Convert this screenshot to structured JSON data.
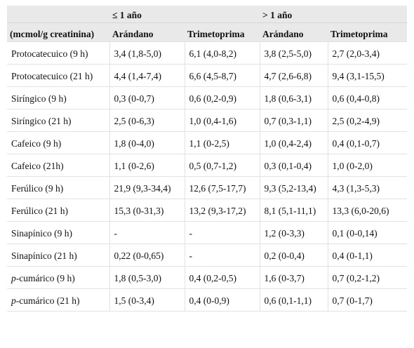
{
  "header": {
    "group1": "≤ 1 año",
    "group2": "> 1 año",
    "unit_label": "(mcmol/g creatinina)",
    "col_cranberry_1": "Arándano",
    "col_tmp_1": "Trimetoprima",
    "col_cranberry_2": "Arándano",
    "col_tmp_2": "Trimetoprima"
  },
  "rows": [
    {
      "label_prefix": "",
      "label": "Protocatecuico (9 h)",
      "c1": "3,4 (1,8-5,0)",
      "c2": "6,1 (4,0-8,2)",
      "c3": "3,8 (2,5-5,0)",
      "c4": "2,7 (2,0-3,4)"
    },
    {
      "label_prefix": "",
      "label": "Protocatecuico (21 h)",
      "c1": "4,4 (1,4-7,4)",
      "c2": "6,6 (4,5-8,7)",
      "c3": "4,7 (2,6-6,8)",
      "c4": "9,4 (3,1-15,5)"
    },
    {
      "label_prefix": "",
      "label": "Siríngico (9 h)",
      "c1": "0,3 (0-0,7)",
      "c2": "0,6 (0,2-0,9)",
      "c3": "1,8 (0,6-3,1)",
      "c4": "0,6 (0,4-0,8)"
    },
    {
      "label_prefix": "",
      "label": "Siríngico (21 h)",
      "c1": "2,5 (0-6,3)",
      "c2": "1,0 (0,4-1,6)",
      "c3": "0,7 (0,3-1,1)",
      "c4": "2,5 (0,2-4,9)"
    },
    {
      "label_prefix": "",
      "label": "Cafeico (9 h)",
      "c1": "1,8 (0-4,0)",
      "c2": "1,1 (0-2,5)",
      "c3": "1,0 (0,4-2,4)",
      "c4": "0,4 (0,1-0,7)"
    },
    {
      "label_prefix": "",
      "label": "Cafeico (21h)",
      "c1": "1,1 (0-2,6)",
      "c2": "0,5 (0,7-1,2)",
      "c3": "0,3 (0,1-0,4)",
      "c4": "1,0 (0-2,0)"
    },
    {
      "label_prefix": "",
      "label": "Ferúlico (9 h)",
      "c1": "21,9 (9,3-34,4)",
      "c2": "12,6 (7,5-17,7)",
      "c3": "9,3 (5,2-13,4)",
      "c4": "4,3 (1,3-5,3)"
    },
    {
      "label_prefix": "",
      "label": "Ferúlico (21 h)",
      "c1": "15,3 (0-31,3)",
      "c2": "13,2 (9,3-17,2)",
      "c3": "8,1 (5,1-11,1)",
      "c4": "13,3 (6,0-20,6)"
    },
    {
      "label_prefix": "",
      "label": "Sinapínico (9 h)",
      "c1": "-",
      "c2": "-",
      "c3": "1,2 (0-3,3)",
      "c4": "0,1 (0-0,14)"
    },
    {
      "label_prefix": "",
      "label": "Sinapínico (21 h)",
      "c1": "0,22 (0-0,65)",
      "c2": "-",
      "c3": "0,2 (0-0,4)",
      "c4": "0,4 (0-1,1)"
    },
    {
      "label_prefix": "p",
      "label": "-cumárico (9 h)",
      "c1": "1,8 (0,5-3,0)",
      "c2": "0,4 (0,2-0,5)",
      "c3": "1,6 (0-3,7)",
      "c4": "0,7 (0,2-1,2)"
    },
    {
      "label_prefix": "p",
      "label": "-cumárico (21 h)",
      "c1": "1,5 (0-3,4)",
      "c2": "0,4 (0-0,9)",
      "c3": "0,6 (0,1-1,1)",
      "c4": "0,7 (0-1,7)"
    }
  ]
}
